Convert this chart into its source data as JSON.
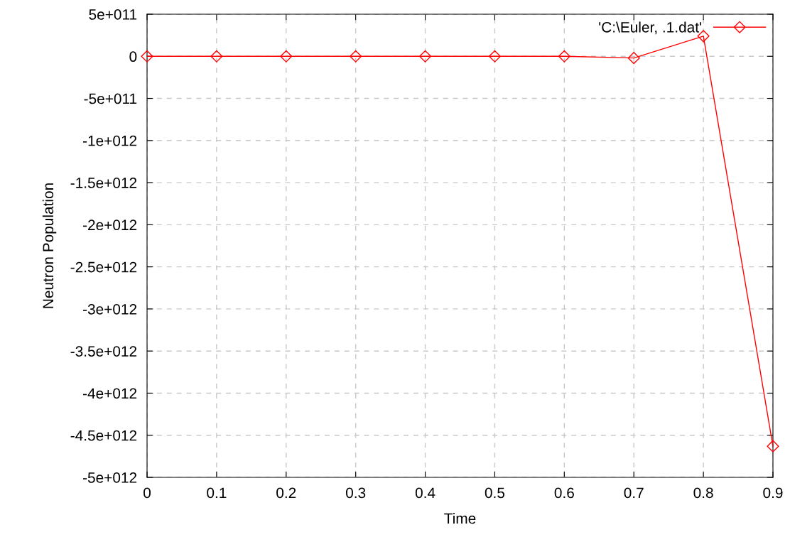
{
  "chart_data": {
    "type": "line",
    "xlabel": "Time",
    "ylabel": "Neutron Population",
    "x": [
      0,
      0.1,
      0.2,
      0.3,
      0.4,
      0.5,
      0.6,
      0.7,
      0.8,
      0.9
    ],
    "series": [
      {
        "name": "'C:\\Euler, .1.dat'",
        "color": "#ff0000",
        "values": [
          0,
          0,
          0,
          0,
          0,
          0,
          0,
          -20000000000.0,
          240000000000.0,
          -4630000000000.0
        ]
      }
    ],
    "xlim": [
      0,
      0.9
    ],
    "xticks": [
      0,
      0.1,
      0.2,
      0.3,
      0.4,
      0.5,
      0.6,
      0.7,
      0.8,
      0.9
    ],
    "ylim": [
      -5000000000000.0,
      500000000000.0
    ],
    "yticks": [
      {
        "value": 500000000000.0,
        "label": "5e+011"
      },
      {
        "value": 0,
        "label": "0"
      },
      {
        "value": -500000000000.0,
        "label": "-5e+011"
      },
      {
        "value": -1000000000000.0,
        "label": "-1e+012"
      },
      {
        "value": -1500000000000.0,
        "label": "-1.5e+012"
      },
      {
        "value": -2000000000000.0,
        "label": "-2e+012"
      },
      {
        "value": -2500000000000.0,
        "label": "-2.5e+012"
      },
      {
        "value": -3000000000000.0,
        "label": "-3e+012"
      },
      {
        "value": -3500000000000.0,
        "label": "-3.5e+012"
      },
      {
        "value": -4000000000000.0,
        "label": "-4e+012"
      },
      {
        "value": -4500000000000.0,
        "label": "-4.5e+012"
      },
      {
        "value": -5000000000000.0,
        "label": "-5e+012"
      }
    ],
    "grid": true,
    "legend": "top right",
    "marker": "diamond",
    "line_style": "solid"
  }
}
